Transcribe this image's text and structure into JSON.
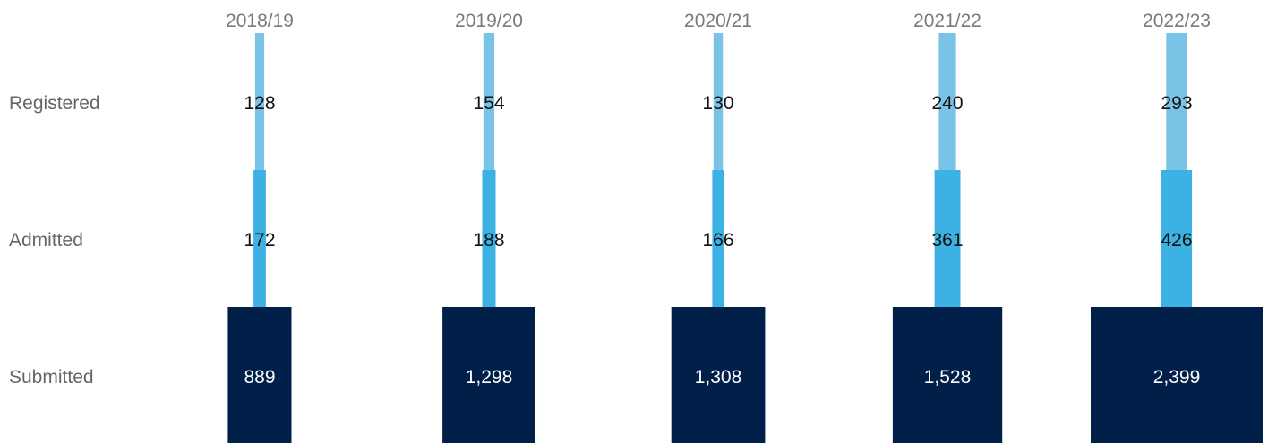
{
  "chart_data": {
    "type": "bar",
    "categories": [
      "2018/19",
      "2019/20",
      "2020/21",
      "2021/22",
      "2022/23"
    ],
    "series": [
      {
        "name": "Registered",
        "values": [
          128,
          154,
          130,
          240,
          293
        ],
        "color": "#79c4e6"
      },
      {
        "name": "Admitted",
        "values": [
          172,
          188,
          166,
          361,
          426
        ],
        "color": "#3bb2e3"
      },
      {
        "name": "Submitted",
        "values": [
          889,
          1298,
          1308,
          1528,
          2399
        ],
        "color": "#00204a"
      }
    ],
    "value_labels": [
      [
        "128",
        "154",
        "130",
        "240",
        "293"
      ],
      [
        "172",
        "188",
        "166",
        "361",
        "426"
      ],
      [
        "889",
        "1,298",
        "1,308",
        "1,528",
        "2,399"
      ]
    ],
    "title": "",
    "xlabel": "",
    "ylabel": "",
    "legend": "none",
    "grid": false
  }
}
